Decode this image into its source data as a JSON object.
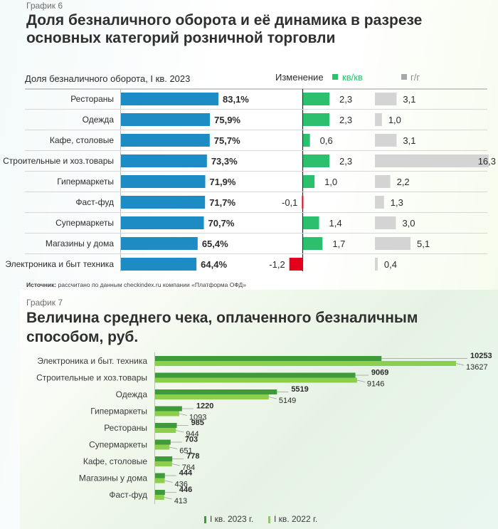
{
  "chart6": {
    "eyebrow": "График 6",
    "title_line1": "Доля безналичного оборота и её динамика в разрезе",
    "title_line2": "основных категорий розничной торговли",
    "left_header": "Доля безналичного оборота, I кв. 2023",
    "change_header": "Изменение",
    "legend_qq": "кв/кв",
    "legend_yy": "г/г",
    "source_bold": "Источник:",
    "source_text": " рассчитано по данным checkindex.ru компании «Платформа ОФД»",
    "colors": {
      "share": "#1d8cc4",
      "qq_pos": "#2cbf6e",
      "qq_neg": "#e3001b",
      "yy": "#d4d4d4"
    },
    "chart_data": {
      "type": "bar",
      "categories": [
        "Рестораны",
        "Одежда",
        "Кафе, столовые",
        "Строительные и хоз.товары",
        "Гипермаркеты",
        "Фаст-фуд",
        "Супермаркеты",
        "Магазины у дома",
        "Электроника и быт техника"
      ],
      "series": [
        {
          "name": "Доля безналичного оборота, I кв. 2023",
          "values": [
            83.1,
            75.9,
            75.7,
            73.3,
            71.9,
            71.7,
            70.7,
            65.4,
            64.4
          ]
        },
        {
          "name": "кв/кв",
          "values": [
            2.3,
            2.3,
            0.6,
            2.3,
            1.0,
            -0.1,
            1.4,
            1.7,
            -1.2
          ]
        },
        {
          "name": "г/г",
          "values": [
            3.1,
            1.0,
            3.1,
            16.3,
            2.2,
            1.3,
            3.0,
            5.1,
            0.4
          ]
        }
      ],
      "share_labels": [
        "83,1%",
        "75,9%",
        "75,7%",
        "73,3%",
        "71,9%",
        "71,7%",
        "70,7%",
        "65,4%",
        "64,4%"
      ],
      "qq_labels": [
        "2,3",
        "2,3",
        "0,6",
        "2,3",
        "1,0",
        "-0,1",
        "1,4",
        "1,7",
        "-1,2"
      ],
      "yy_labels": [
        "3,1",
        "1,0",
        "3,1",
        "16,3",
        "2,2",
        "1,3",
        "3,0",
        "5,1",
        "0,4"
      ]
    }
  },
  "chart7": {
    "eyebrow": "График 7",
    "title_line1": "Величина среднего чека, оплаченного безналичным",
    "title_line2": "способом, руб.",
    "colors": {
      "y2023": "#3e9a3a",
      "y2022": "#8ccf4d"
    },
    "chart_data": {
      "type": "bar",
      "categories": [
        "Электроника и быт. техника",
        "Строительные и хоз.товары",
        "Одежда",
        "Гипермаркеты",
        "Рестораны",
        "Супермаркеты",
        "Кафе, столовые",
        "Магазины у дома",
        "Фаст-фуд"
      ],
      "series": [
        {
          "name": "I кв. 2023 г.",
          "values": [
            10253,
            9069,
            5519,
            1220,
            985,
            703,
            778,
            444,
            446
          ]
        },
        {
          "name": "I кв. 2022 г.",
          "values": [
            13627,
            9146,
            5149,
            1093,
            944,
            651,
            764,
            436,
            413
          ]
        }
      ],
      "legend": [
        "I кв. 2023 г.",
        "I кв. 2022 г."
      ],
      "legend_position": "bottom"
    }
  }
}
